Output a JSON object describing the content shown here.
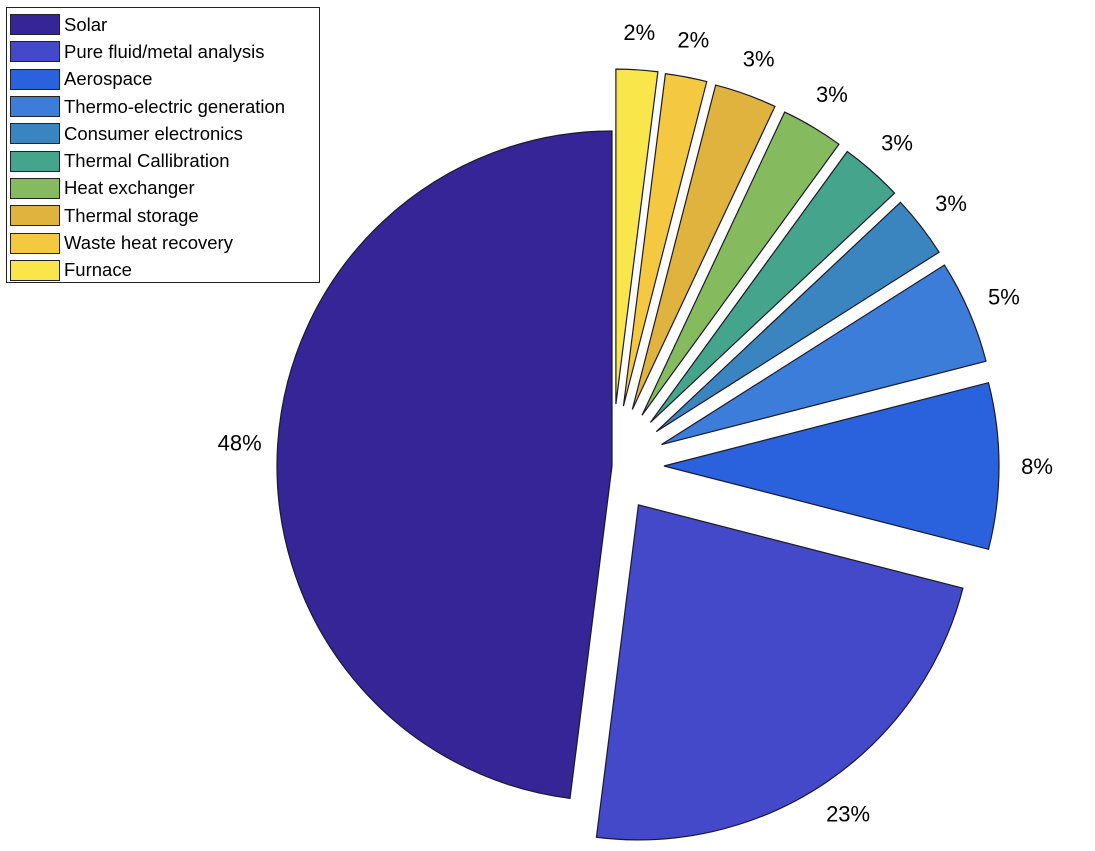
{
  "chart_data": {
    "type": "pie",
    "exploded": true,
    "legend_position": "top-left",
    "slices": [
      {
        "name": "Solar",
        "label": "48%",
        "value": 48,
        "color": "#352596"
      },
      {
        "name": "Pure fluid/metal analysis",
        "label": "23%",
        "value": 23,
        "color": "#4349c8"
      },
      {
        "name": "Aerospace",
        "label": "8%",
        "value": 8,
        "color": "#2a62de"
      },
      {
        "name": "Thermo-electric generation",
        "label": "5%",
        "value": 5,
        "color": "#3b7dd8"
      },
      {
        "name": "Consumer electronics",
        "label": "3%",
        "value": 3,
        "color": "#3a85bf"
      },
      {
        "name": "Thermal Callibration",
        "label": "3%",
        "value": 3,
        "color": "#45a48c"
      },
      {
        "name": "Heat exchanger",
        "label": "3%",
        "value": 3,
        "color": "#85ba5e"
      },
      {
        "name": "Thermal storage",
        "label": "3%",
        "value": 3,
        "color": "#e0b23e"
      },
      {
        "name": "Waste heat recovery",
        "label": "2%",
        "value": 2,
        "color": "#f5c842"
      },
      {
        "name": "Furnace",
        "label": "2%",
        "value": 2,
        "color": "#f8e64a"
      }
    ]
  }
}
